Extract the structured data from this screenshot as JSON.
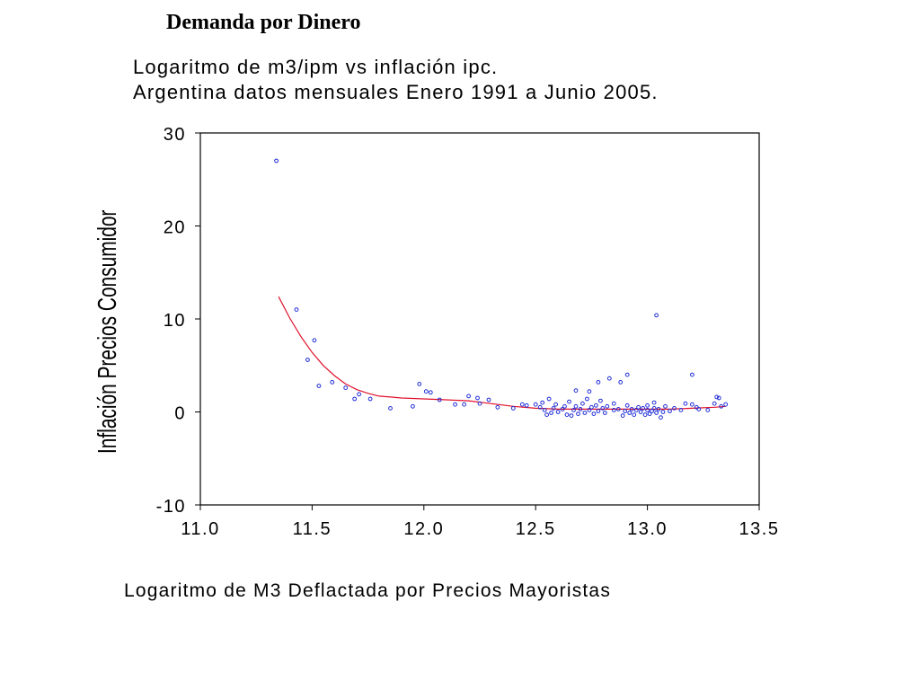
{
  "page": {
    "heading": "Demanda por Dinero"
  },
  "chart_data": {
    "type": "scatter",
    "title": "Logaritmo de m3/ipm vs inflación ipc.",
    "subtitle": "Argentina datos mensuales Enero 1991 a Junio 2005.",
    "xlabel": "Logaritmo de M3 Deflactada por Precios Mayoristas",
    "ylabel": "Inflación Precios Consumidor",
    "xlim": [
      11.0,
      13.5
    ],
    "ylim": [
      -10,
      30
    ],
    "xticks": [
      "11.0",
      "11.5",
      "12.0",
      "12.5",
      "13.0",
      "13.5"
    ],
    "yticks": [
      "30",
      "20",
      "10",
      "0",
      "-10"
    ],
    "grid": false,
    "marker_color": "#1f2dd6",
    "line_color": "#e0102a",
    "series": [
      {
        "type": "scatter",
        "points": [
          [
            11.34,
            27.0
          ],
          [
            11.43,
            11.0
          ],
          [
            11.48,
            5.6
          ],
          [
            11.51,
            7.7
          ],
          [
            11.53,
            2.8
          ],
          [
            11.59,
            3.2
          ],
          [
            11.65,
            2.6
          ],
          [
            11.69,
            1.4
          ],
          [
            11.71,
            1.9
          ],
          [
            11.76,
            1.4
          ],
          [
            11.85,
            0.4
          ],
          [
            11.95,
            0.6
          ],
          [
            11.98,
            3.0
          ],
          [
            12.01,
            2.2
          ],
          [
            12.03,
            2.1
          ],
          [
            12.07,
            1.3
          ],
          [
            12.14,
            0.8
          ],
          [
            12.18,
            0.8
          ],
          [
            12.2,
            1.7
          ],
          [
            12.24,
            1.5
          ],
          [
            12.25,
            0.9
          ],
          [
            12.29,
            1.3
          ],
          [
            12.33,
            0.5
          ],
          [
            12.4,
            0.4
          ],
          [
            12.44,
            0.8
          ],
          [
            12.46,
            0.7
          ],
          [
            12.5,
            0.8
          ],
          [
            12.52,
            0.5
          ],
          [
            12.53,
            1.0
          ],
          [
            12.54,
            0.2
          ],
          [
            12.55,
            -0.3
          ],
          [
            12.56,
            1.4
          ],
          [
            12.57,
            -0.1
          ],
          [
            12.58,
            0.4
          ],
          [
            12.59,
            0.8
          ],
          [
            12.6,
            0.0
          ],
          [
            12.62,
            0.3
          ],
          [
            12.63,
            0.6
          ],
          [
            12.64,
            -0.3
          ],
          [
            12.65,
            1.1
          ],
          [
            12.66,
            -0.4
          ],
          [
            12.67,
            0.2
          ],
          [
            12.68,
            0.6
          ],
          [
            12.68,
            2.3
          ],
          [
            12.69,
            -0.2
          ],
          [
            12.7,
            0.3
          ],
          [
            12.71,
            0.9
          ],
          [
            12.72,
            -0.1
          ],
          [
            12.73,
            1.4
          ],
          [
            12.74,
            0.2
          ],
          [
            12.74,
            2.2
          ],
          [
            12.75,
            0.5
          ],
          [
            12.76,
            -0.2
          ],
          [
            12.77,
            0.7
          ],
          [
            12.78,
            0.1
          ],
          [
            12.78,
            3.2
          ],
          [
            12.79,
            1.2
          ],
          [
            12.8,
            0.4
          ],
          [
            12.81,
            -0.1
          ],
          [
            12.82,
            0.6
          ],
          [
            12.83,
            3.6
          ],
          [
            12.85,
            0.2
          ],
          [
            12.85,
            0.9
          ],
          [
            12.87,
            0.3
          ],
          [
            12.88,
            3.2
          ],
          [
            12.89,
            -0.4
          ],
          [
            12.9,
            0.1
          ],
          [
            12.91,
            0.7
          ],
          [
            12.91,
            4.0
          ],
          [
            12.92,
            -0.1
          ],
          [
            12.93,
            0.3
          ],
          [
            12.94,
            -0.3
          ],
          [
            12.95,
            0.2
          ],
          [
            12.96,
            0.5
          ],
          [
            12.97,
            0.0
          ],
          [
            12.98,
            0.4
          ],
          [
            12.99,
            -0.3
          ],
          [
            13.0,
            0.2
          ],
          [
            13.0,
            0.7
          ],
          [
            13.01,
            -0.2
          ],
          [
            13.02,
            0.1
          ],
          [
            13.03,
            0.4
          ],
          [
            13.03,
            1.0
          ],
          [
            13.04,
            -0.1
          ],
          [
            13.04,
            10.4
          ],
          [
            13.05,
            0.3
          ],
          [
            13.06,
            -0.6
          ],
          [
            13.07,
            0.0
          ],
          [
            13.08,
            0.6
          ],
          [
            13.1,
            0.1
          ],
          [
            13.12,
            0.4
          ],
          [
            13.15,
            0.2
          ],
          [
            13.17,
            0.9
          ],
          [
            13.2,
            0.8
          ],
          [
            13.2,
            4.0
          ],
          [
            13.22,
            0.5
          ],
          [
            13.23,
            0.3
          ],
          [
            13.27,
            0.2
          ],
          [
            13.3,
            0.9
          ],
          [
            13.31,
            1.6
          ],
          [
            13.32,
            1.5
          ],
          [
            13.33,
            0.6
          ],
          [
            13.35,
            0.8
          ]
        ]
      },
      {
        "type": "line",
        "points": [
          [
            11.35,
            12.4
          ],
          [
            11.4,
            10.1
          ],
          [
            11.45,
            8.1
          ],
          [
            11.5,
            6.4
          ],
          [
            11.55,
            5.0
          ],
          [
            11.6,
            3.9
          ],
          [
            11.65,
            3.0
          ],
          [
            11.7,
            2.4
          ],
          [
            11.75,
            2.0
          ],
          [
            11.8,
            1.7
          ],
          [
            11.85,
            1.6
          ],
          [
            11.9,
            1.5
          ],
          [
            12.0,
            1.4
          ],
          [
            12.1,
            1.3
          ],
          [
            12.2,
            1.2
          ],
          [
            12.3,
            0.9
          ],
          [
            12.4,
            0.6
          ],
          [
            12.5,
            0.4
          ],
          [
            12.6,
            0.3
          ],
          [
            12.7,
            0.3
          ],
          [
            12.8,
            0.3
          ],
          [
            12.9,
            0.3
          ],
          [
            13.0,
            0.3
          ],
          [
            13.1,
            0.3
          ],
          [
            13.2,
            0.4
          ],
          [
            13.3,
            0.5
          ],
          [
            13.35,
            0.6
          ]
        ]
      }
    ]
  }
}
